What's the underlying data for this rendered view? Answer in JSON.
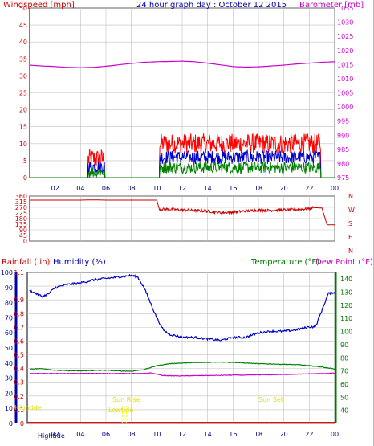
{
  "header": {
    "wind_label": "Windspeed [mph]",
    "title": "24 hour graph day : October 12 2015",
    "baro_label": "Barometer [mb]"
  },
  "lower_header": {
    "rain_label": "Rainfall (.in)",
    "humidity_label": "Humidity (%)",
    "temp_label": "Temperature (°F)",
    "dew_label": "Dew Point (°F)"
  },
  "annotations": {
    "sun_rise": "Sun Rise",
    "sun_set": "Sun Set",
    "low_tide": "Lowtide",
    "high_tide_left": "Hightide",
    "high_tide_bottom": "Hightide"
  },
  "colors": {
    "wind": "#ff0000",
    "gust": "#ff0000",
    "wind_avg": "#0000cc",
    "wind_low": "#008000",
    "barometer": "#cc00cc",
    "direction": "#cc0000",
    "humidity": "#0000cc",
    "temperature": "#008000",
    "dew_point": "#cc00cc",
    "rain": "#ff0000",
    "tide": "#ffff00",
    "grid": "#c0c0c0"
  },
  "chart_data": [
    {
      "type": "line",
      "title": "24 hour graph day : October 12 2015",
      "xlabel": "",
      "x_tick_labels": [
        "02",
        "04",
        "06",
        "08",
        "10",
        "12",
        "14",
        "16",
        "18",
        "20",
        "22",
        "00"
      ],
      "ylabel": "Windspeed [mph]",
      "ylim": [
        0,
        50
      ],
      "y_ticks": [
        0,
        5,
        10,
        15,
        20,
        25,
        30,
        35,
        40,
        45,
        50
      ],
      "y2label": "Barometer [mb]",
      "y2lim": [
        975,
        1035
      ],
      "y2_ticks": [
        975,
        980,
        985,
        990,
        995,
        1000,
        1005,
        1010,
        1015,
        1020,
        1025,
        1030,
        1035
      ],
      "grid": true,
      "wind_active_ranges_hours": [
        [
          4.6,
          5.9
        ],
        [
          10.2,
          22.9
        ]
      ],
      "series": [
        {
          "name": "Barometer [mb]",
          "axis": "right",
          "x": [
            0,
            1,
            2,
            3,
            4,
            5,
            6,
            7,
            8,
            9,
            10,
            11,
            12,
            13,
            14,
            15,
            16,
            17,
            18,
            19,
            20,
            21,
            22,
            23,
            24
          ],
          "y": [
            1014.8,
            1014.5,
            1014.3,
            1014.0,
            1013.9,
            1014.0,
            1014.4,
            1014.9,
            1015.4,
            1015.8,
            1016.0,
            1016.1,
            1016.2,
            1016.0,
            1015.5,
            1014.9,
            1014.3,
            1014.1,
            1014.2,
            1014.5,
            1014.8,
            1015.2,
            1015.5,
            1015.8,
            1016.0
          ]
        }
      ]
    },
    {
      "type": "line",
      "title": "",
      "ylim": [
        0,
        360
      ],
      "y_ticks": [
        0,
        45,
        90,
        135,
        180,
        225,
        270,
        315,
        360
      ],
      "y2_labels": [
        "N",
        "W",
        "S",
        "E",
        "N"
      ],
      "grid": true,
      "series": [
        {
          "name": "Wind direction",
          "x": [
            0,
            1,
            2,
            3,
            4,
            5,
            6,
            7,
            8,
            9,
            10,
            10.2,
            11,
            12,
            13,
            14,
            15,
            16,
            17,
            18,
            19,
            20,
            21,
            22,
            22.3,
            23,
            23.4,
            24
          ],
          "y": [
            328,
            328,
            328,
            328,
            328,
            330,
            328,
            328,
            328,
            328,
            328,
            255,
            255,
            250,
            245,
            240,
            228,
            232,
            240,
            248,
            246,
            250,
            253,
            260,
            268,
            265,
            130,
            130
          ]
        }
      ]
    },
    {
      "type": "line",
      "title": "",
      "y_left_outer_label": "Rainfall (.in)",
      "y_left_outer_lim": [
        0,
        1.1
      ],
      "y_left_outer_ticks": [
        0,
        0.1,
        0.2,
        0.3,
        0.4,
        0.5,
        0.6,
        0.7,
        0.8,
        0.9,
        1,
        1.1
      ],
      "y_left_inner_label": "Humidity (%)",
      "y_left_inner_lim": [
        0,
        100
      ],
      "y_left_inner_ticks": [
        0,
        10,
        20,
        30,
        40,
        50,
        60,
        70,
        80,
        90,
        100
      ],
      "y_right_label": "Temperature (°F)",
      "y_right_lim": [
        30,
        145
      ],
      "y_right_ticks": [
        40,
        50,
        60,
        70,
        80,
        90,
        100,
        110,
        120,
        130,
        140
      ],
      "x_tick_labels": [
        "02",
        "04",
        "06",
        "08",
        "10",
        "12",
        "14",
        "16",
        "18",
        "20",
        "22",
        "00"
      ],
      "grid": true,
      "series": [
        {
          "name": "Humidity (%)",
          "axis": "inner",
          "x": [
            0,
            0.5,
            1,
            1.5,
            2,
            3,
            4,
            5,
            6,
            7,
            8,
            8.5,
            9,
            9.5,
            10,
            10.5,
            11,
            12,
            13,
            14,
            15,
            16,
            17,
            18,
            19,
            20,
            21,
            22,
            22.5,
            23,
            23.5,
            24
          ],
          "y": [
            88,
            86,
            84,
            86,
            90,
            92,
            93,
            95,
            96,
            97,
            98,
            97,
            90,
            80,
            70,
            62,
            59,
            57,
            57,
            56,
            55,
            57,
            57,
            60,
            61,
            61,
            62,
            64,
            64,
            75,
            86,
            87
          ]
        },
        {
          "name": "Temperature (°F)",
          "axis": "right",
          "x": [
            0,
            1,
            2,
            3,
            4,
            5,
            6,
            7,
            8,
            9,
            10,
            11,
            12,
            13,
            14,
            15,
            16,
            17,
            18,
            19,
            20,
            21,
            22,
            23,
            24
          ],
          "y": [
            71.5,
            71.8,
            70.5,
            70.2,
            70.0,
            70.3,
            70.5,
            70.0,
            69.8,
            71.0,
            74.0,
            75.5,
            76.0,
            76.3,
            76.5,
            76.8,
            76.5,
            76.0,
            75.5,
            75.3,
            75.0,
            74.8,
            74.0,
            73.0,
            71.5
          ]
        },
        {
          "name": "Dew Point (°F)",
          "axis": "right",
          "x": [
            0,
            1,
            2,
            3,
            4,
            5,
            6,
            7,
            8,
            9,
            9.5,
            10,
            10.5,
            11,
            12,
            13,
            14,
            15,
            16,
            17,
            18,
            19,
            20,
            21,
            22,
            23,
            24
          ],
          "y": [
            68.0,
            68.1,
            68.0,
            68.0,
            68.1,
            68.2,
            68.0,
            68.1,
            68.0,
            68.0,
            68.5,
            67.5,
            66.5,
            66.3,
            66.2,
            66.4,
            66.5,
            66.6,
            66.8,
            66.8,
            67.0,
            67.1,
            67.3,
            67.5,
            67.8,
            68.0,
            68.3
          ]
        },
        {
          "name": "Rainfall (.in)",
          "axis": "outer",
          "x": [
            0,
            24
          ],
          "y": [
            0,
            0
          ]
        }
      ]
    }
  ]
}
